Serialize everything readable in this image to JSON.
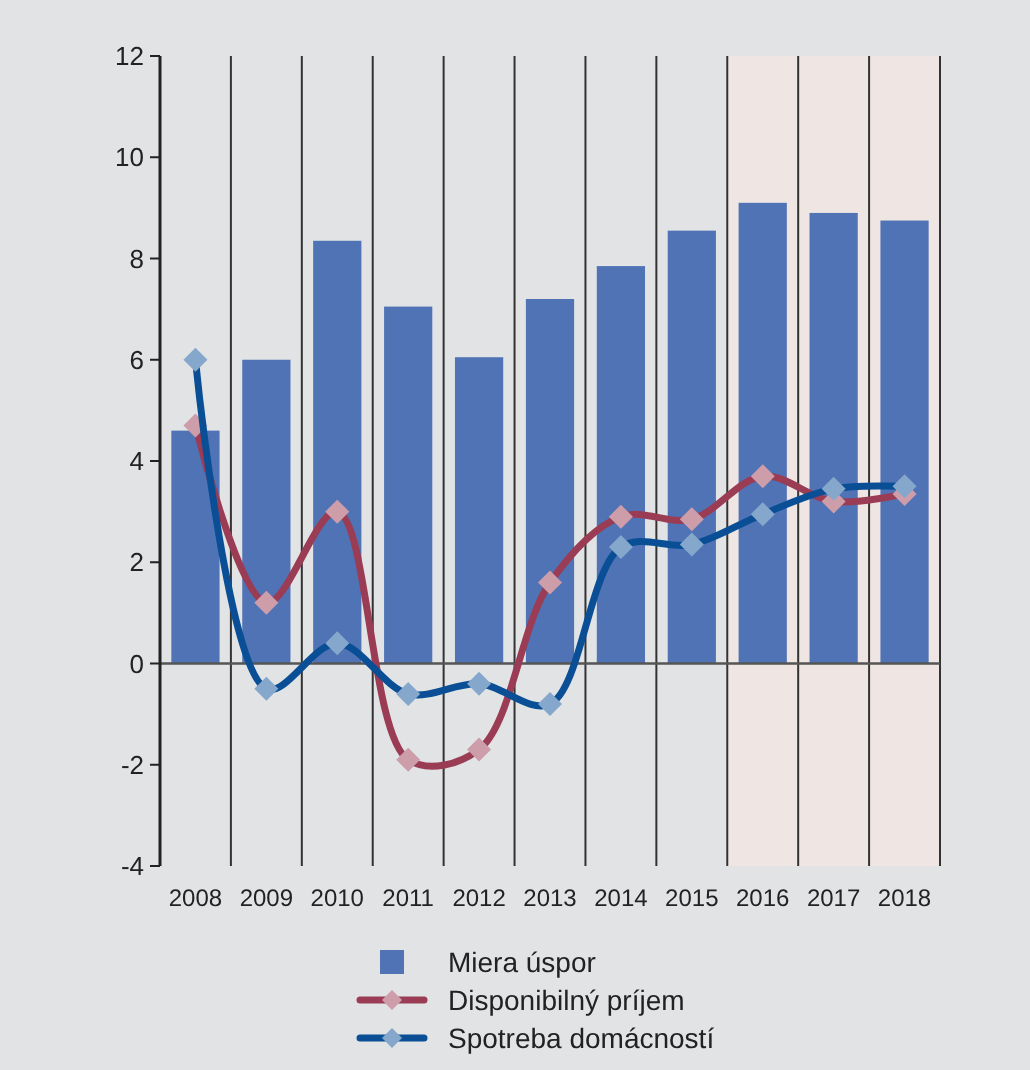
{
  "chart_data": {
    "type": "bar",
    "categories": [
      "2008",
      "2009",
      "2010",
      "2011",
      "2012",
      "2013",
      "2014",
      "2015",
      "2016",
      "2017",
      "2018"
    ],
    "series": [
      {
        "name": "Miera úspor",
        "color": "#5073b5",
        "values": [
          4.6,
          6.0,
          8.35,
          7.05,
          6.05,
          7.2,
          7.85,
          8.55,
          9.1,
          8.9,
          8.75
        ]
      },
      {
        "name": "Disponibilný príjem",
        "type": "line",
        "color": "#9b3c55",
        "values": [
          4.7,
          1.2,
          3.0,
          -1.9,
          -1.7,
          1.6,
          2.9,
          2.85,
          3.7,
          3.2,
          3.35
        ]
      },
      {
        "name": "Spotreba domácností",
        "type": "line",
        "color": "#0a4f96",
        "values": [
          6.0,
          -0.5,
          0.4,
          -0.6,
          -0.4,
          -0.8,
          2.3,
          2.35,
          2.95,
          3.45,
          3.5
        ]
      }
    ],
    "ylim": [
      -4,
      12
    ],
    "yticks": [
      -4,
      -2,
      0,
      2,
      4,
      6,
      8,
      10,
      12
    ],
    "grid": "x",
    "marker": "diamond",
    "line_style": "solid",
    "legend": "bottom",
    "bands": [
      {
        "axis": "x",
        "from": "2016",
        "to": "2018",
        "color": "#efe6e4"
      }
    ]
  }
}
